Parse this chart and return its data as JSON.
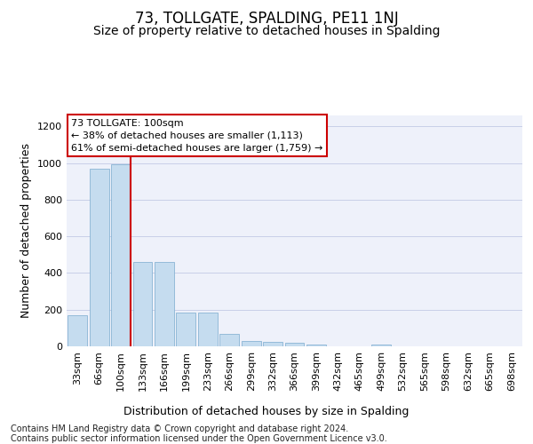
{
  "title": "73, TOLLGATE, SPALDING, PE11 1NJ",
  "subtitle": "Size of property relative to detached houses in Spalding",
  "xlabel": "Distribution of detached houses by size in Spalding",
  "ylabel": "Number of detached properties",
  "footer_line1": "Contains HM Land Registry data © Crown copyright and database right 2024.",
  "footer_line2": "Contains public sector information licensed under the Open Government Licence v3.0.",
  "categories": [
    "33sqm",
    "66sqm",
    "100sqm",
    "133sqm",
    "166sqm",
    "199sqm",
    "233sqm",
    "266sqm",
    "299sqm",
    "332sqm",
    "366sqm",
    "399sqm",
    "432sqm",
    "465sqm",
    "499sqm",
    "532sqm",
    "565sqm",
    "598sqm",
    "632sqm",
    "665sqm",
    "698sqm"
  ],
  "values": [
    172,
    968,
    995,
    462,
    462,
    183,
    183,
    70,
    30,
    22,
    20,
    12,
    0,
    0,
    12,
    0,
    0,
    0,
    0,
    0,
    0
  ],
  "bar_color": "#c5dcef",
  "bar_edge_color": "#8ab4d4",
  "vline_x_index": 2,
  "vline_color": "#cc0000",
  "annotation_text": "73 TOLLGATE: 100sqm\n← 38% of detached houses are smaller (1,113)\n61% of semi-detached houses are larger (1,759) →",
  "annotation_box_color": "#cc0000",
  "ylim": [
    0,
    1260
  ],
  "yticks": [
    0,
    200,
    400,
    600,
    800,
    1000,
    1200
  ],
  "background_color": "#eef1fa",
  "grid_color": "#c8cfe8",
  "title_fontsize": 12,
  "subtitle_fontsize": 10,
  "ylabel_fontsize": 9,
  "xlabel_fontsize": 9,
  "tick_fontsize": 8,
  "annot_fontsize": 8,
  "footer_fontsize": 7
}
